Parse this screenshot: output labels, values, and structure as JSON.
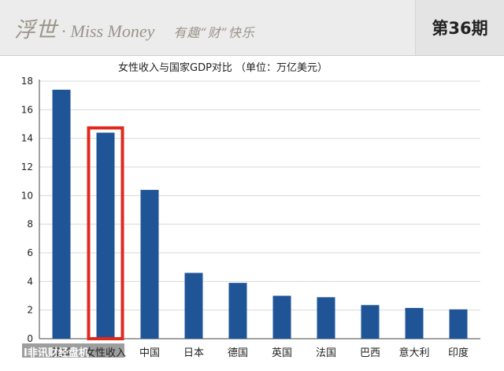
{
  "header": {
    "brand_cn": "浮世",
    "brand_dot": "·",
    "brand_en": "Miss Money",
    "tagline": "有趣“财”快乐",
    "issue": "第36期"
  },
  "watermark": {
    "text": "I非讯财经盘机"
  },
  "colors": {
    "bar": "#1f5597",
    "highlight": "#e0291c",
    "grid": "#d9d9d9"
  },
  "chart_data": {
    "type": "bar",
    "title": "女性收入与国家GDP对比 （单位：万亿美元）",
    "categories": [
      "美国",
      "女性收入",
      "中国",
      "日本",
      "德国",
      "英国",
      "法国",
      "巴西",
      "意大利",
      "印度"
    ],
    "values": [
      17.4,
      14.4,
      10.4,
      4.6,
      3.9,
      3.0,
      2.9,
      2.35,
      2.15,
      2.05
    ],
    "highlight_index": 1,
    "ylim": [
      0,
      18
    ],
    "yticks": [
      0,
      2,
      4,
      6,
      8,
      10,
      12,
      14,
      16,
      18
    ],
    "grid": true,
    "xlabel": "",
    "ylabel": ""
  }
}
